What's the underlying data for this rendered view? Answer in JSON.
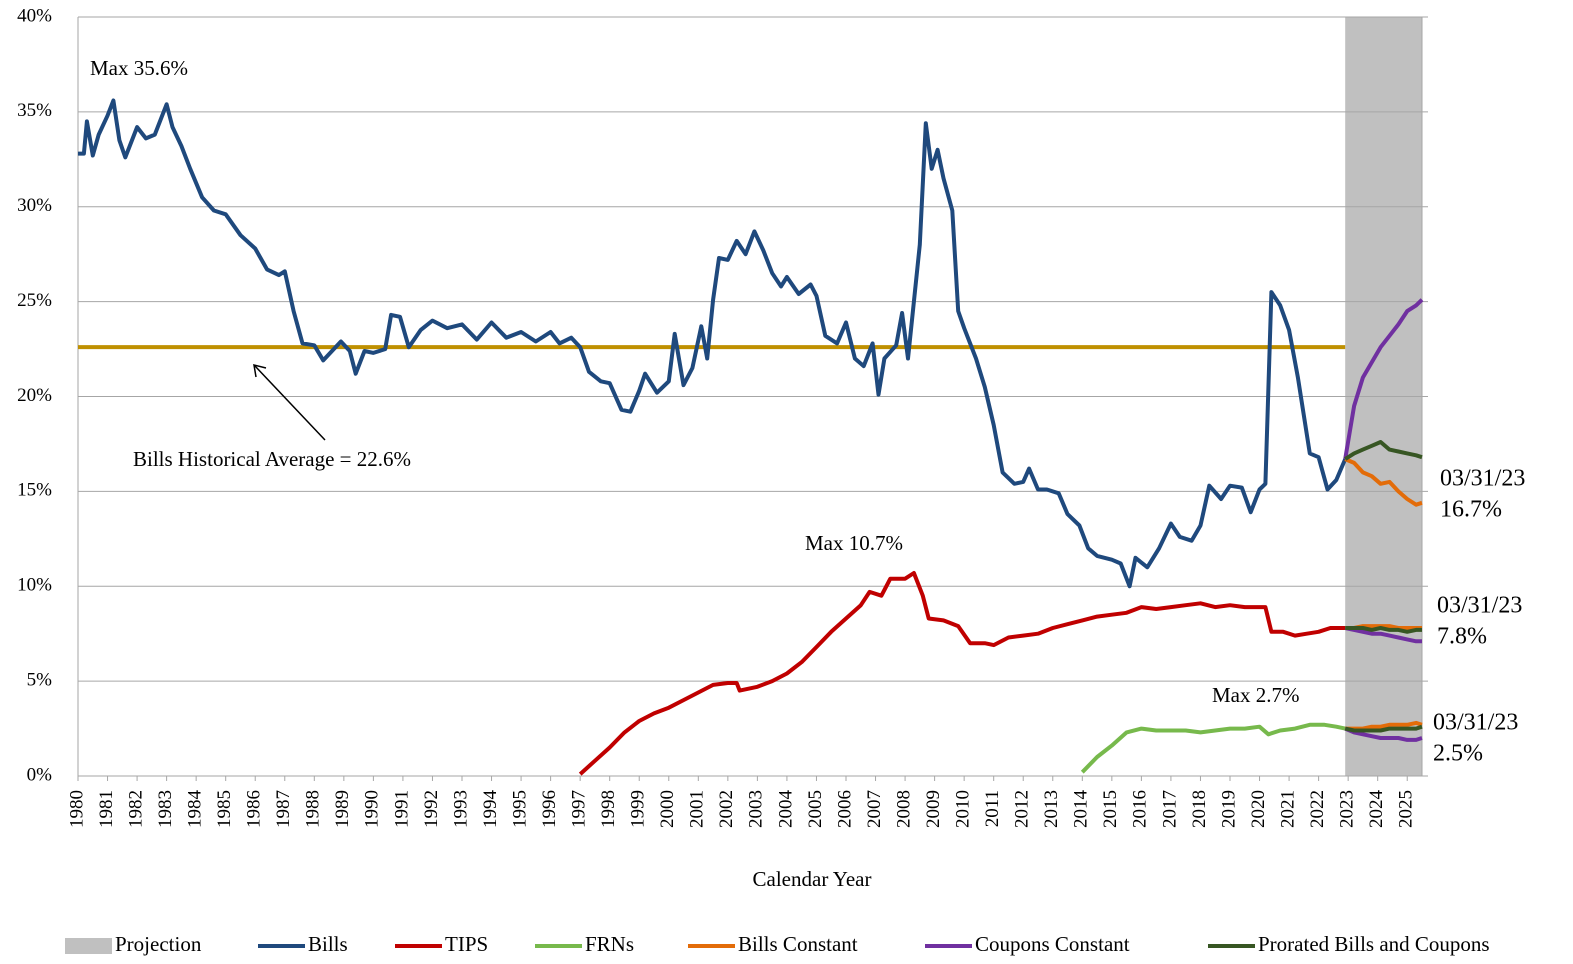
{
  "chart_data": {
    "type": "line",
    "x_label": "Calendar Year",
    "xlim": [
      1980,
      2025.5
    ],
    "xticks": [
      1980,
      1981,
      1982,
      1983,
      1984,
      1985,
      1986,
      1987,
      1988,
      1989,
      1990,
      1991,
      1992,
      1993,
      1994,
      1995,
      1996,
      1997,
      1998,
      1999,
      2000,
      2001,
      2002,
      2003,
      2004,
      2005,
      2006,
      2007,
      2008,
      2009,
      2010,
      2011,
      2012,
      2013,
      2014,
      2015,
      2016,
      2017,
      2018,
      2019,
      2020,
      2021,
      2022,
      2023,
      2024,
      2025
    ],
    "ylim": [
      0,
      40
    ],
    "yticks": [
      {
        "value": 0,
        "label": "0%"
      },
      {
        "value": 5,
        "label": "5%"
      },
      {
        "value": 10,
        "label": "10%"
      },
      {
        "value": 15,
        "label": "15%"
      },
      {
        "value": 20,
        "label": "20%"
      },
      {
        "value": 25,
        "label": "25%"
      },
      {
        "value": 30,
        "label": "30%"
      },
      {
        "value": 35,
        "label": "35%"
      },
      {
        "value": 40,
        "label": "40%"
      }
    ],
    "grid": true,
    "legend": "bottom",
    "projection": {
      "name": "Projection",
      "color": "#c0c0c0",
      "range": [
        2022.9,
        2025.5
      ]
    },
    "average": {
      "value": 22.6,
      "label": "Bills Historical Average = 22.6%",
      "color": "#bf9000"
    },
    "annotations": [
      "Max 35.6%",
      "Max 10.7%",
      "Max 2.7%"
    ],
    "end_labels": [
      {
        "date": "03/31/23",
        "label": "16.7%"
      },
      {
        "date": "03/31/23",
        "label": "7.8%"
      },
      {
        "date": "03/31/23",
        "label": "2.5%"
      }
    ],
    "series": [
      {
        "name": "Bills",
        "color": "#1f497d",
        "x": [
          1980.0,
          1980.2,
          1980.3,
          1980.5,
          1980.7,
          1981.0,
          1981.2,
          1981.4,
          1981.6,
          1982.0,
          1982.3,
          1982.6,
          1983.0,
          1983.2,
          1983.5,
          1983.8,
          1984.2,
          1984.6,
          1985.0,
          1985.5,
          1986.0,
          1986.4,
          1986.8,
          1987.0,
          1987.3,
          1987.6,
          1988.0,
          1988.3,
          1988.6,
          1988.9,
          1989.2,
          1989.4,
          1989.7,
          1990.0,
          1990.4,
          1990.6,
          1990.9,
          1991.2,
          1991.6,
          1992.0,
          1992.5,
          1993.0,
          1993.5,
          1994.0,
          1994.5,
          1995.0,
          1995.5,
          1996.0,
          1996.3,
          1996.7,
          1997.0,
          1997.3,
          1997.7,
          1998.0,
          1998.4,
          1998.7,
          1999.0,
          1999.2,
          1999.6,
          2000.0,
          2000.2,
          2000.5,
          2000.8,
          2001.1,
          2001.3,
          2001.5,
          2001.7,
          2002.0,
          2002.3,
          2002.6,
          2002.9,
          2003.2,
          2003.5,
          2003.8,
          2004.0,
          2004.4,
          2004.8,
          2005.0,
          2005.3,
          2005.7,
          2006.0,
          2006.3,
          2006.6,
          2006.9,
          2007.1,
          2007.3,
          2007.7,
          2007.9,
          2008.1,
          2008.5,
          2008.7,
          2008.9,
          2009.1,
          2009.3,
          2009.6,
          2009.8,
          2010.0,
          2010.4,
          2010.7,
          2011.0,
          2011.3,
          2011.7,
          2012.0,
          2012.2,
          2012.5,
          2012.8,
          2013.2,
          2013.5,
          2013.9,
          2014.2,
          2014.5,
          2015.0,
          2015.3,
          2015.6,
          2015.8,
          2016.2,
          2016.6,
          2017.0,
          2017.3,
          2017.7,
          2018.0,
          2018.3,
          2018.7,
          2019.0,
          2019.4,
          2019.7,
          2020.0,
          2020.2,
          2020.4,
          2020.7,
          2021.0,
          2021.3,
          2021.7,
          2022.0,
          2022.3,
          2022.6,
          2022.9
        ],
        "values": [
          32.8,
          32.8,
          34.5,
          32.7,
          33.8,
          34.8,
          35.6,
          33.5,
          32.6,
          34.2,
          33.6,
          33.8,
          35.4,
          34.2,
          33.2,
          32.0,
          30.5,
          29.8,
          29.6,
          28.5,
          27.8,
          26.7,
          26.4,
          26.6,
          24.5,
          22.8,
          22.7,
          21.9,
          22.4,
          22.9,
          22.4,
          21.2,
          22.4,
          22.3,
          22.5,
          24.3,
          24.2,
          22.6,
          23.5,
          24.0,
          23.6,
          23.8,
          23.0,
          23.9,
          23.1,
          23.4,
          22.9,
          23.4,
          22.8,
          23.1,
          22.6,
          21.3,
          20.8,
          20.7,
          19.3,
          19.2,
          20.3,
          21.2,
          20.2,
          20.8,
          23.3,
          20.6,
          21.5,
          23.7,
          22.0,
          25.1,
          27.3,
          27.2,
          28.2,
          27.5,
          28.7,
          27.7,
          26.5,
          25.8,
          26.3,
          25.4,
          25.9,
          25.3,
          23.2,
          22.8,
          23.9,
          22.0,
          21.6,
          22.8,
          20.1,
          22.0,
          22.7,
          24.4,
          22.0,
          28.0,
          34.4,
          32.0,
          33.0,
          31.5,
          29.8,
          24.5,
          23.6,
          22.0,
          20.5,
          18.5,
          16.0,
          15.4,
          15.5,
          16.2,
          15.1,
          15.1,
          14.9,
          13.8,
          13.2,
          12.0,
          11.6,
          11.4,
          11.2,
          10.0,
          11.5,
          11.0,
          12.0,
          13.3,
          12.6,
          12.4,
          13.2,
          15.3,
          14.6,
          15.3,
          15.2,
          13.9,
          15.1,
          15.4,
          25.5,
          24.8,
          23.5,
          21.0,
          17.0,
          16.8,
          15.1,
          15.6,
          16.7
        ]
      },
      {
        "name": "TIPS",
        "color": "#c00000",
        "x": [
          1997.0,
          1997.5,
          1998.0,
          1998.5,
          1999.0,
          1999.5,
          2000.0,
          2000.5,
          2001.0,
          2001.5,
          2002.0,
          2002.3,
          2002.4,
          2003.0,
          2003.5,
          2004.0,
          2004.5,
          2005.0,
          2005.5,
          2006.0,
          2006.5,
          2006.8,
          2007.2,
          2007.5,
          2008.0,
          2008.3,
          2008.6,
          2008.8,
          2009.3,
          2009.8,
          2010.2,
          2010.7,
          2011.0,
          2011.5,
          2012.0,
          2012.5,
          2013.0,
          2013.5,
          2014.0,
          2014.5,
          2015.0,
          2015.5,
          2016.0,
          2016.5,
          2017.0,
          2017.5,
          2018.0,
          2018.5,
          2019.0,
          2019.5,
          2020.0,
          2020.2,
          2020.4,
          2020.8,
          2021.2,
          2021.6,
          2022.0,
          2022.4,
          2022.9
        ],
        "values": [
          0.1,
          0.8,
          1.5,
          2.3,
          2.9,
          3.3,
          3.6,
          4.0,
          4.4,
          4.8,
          4.9,
          4.9,
          4.5,
          4.7,
          5.0,
          5.4,
          6.0,
          6.8,
          7.6,
          8.3,
          9.0,
          9.7,
          9.5,
          10.4,
          10.4,
          10.7,
          9.5,
          8.3,
          8.2,
          7.9,
          7.0,
          7.0,
          6.9,
          7.3,
          7.4,
          7.5,
          7.8,
          8.0,
          8.2,
          8.4,
          8.5,
          8.6,
          8.9,
          8.8,
          8.9,
          9.0,
          9.1,
          8.9,
          9.0,
          8.9,
          8.9,
          8.9,
          7.6,
          7.6,
          7.4,
          7.5,
          7.6,
          7.8,
          7.8
        ]
      },
      {
        "name": "FRNs",
        "color": "#77b94c",
        "x": [
          2014.0,
          2014.5,
          2015.0,
          2015.5,
          2016.0,
          2016.5,
          2017.0,
          2017.5,
          2018.0,
          2018.5,
          2019.0,
          2019.5,
          2020.0,
          2020.3,
          2020.7,
          2021.2,
          2021.7,
          2022.2,
          2022.6,
          2022.9
        ],
        "values": [
          0.2,
          1.0,
          1.6,
          2.3,
          2.5,
          2.4,
          2.4,
          2.4,
          2.3,
          2.4,
          2.5,
          2.5,
          2.6,
          2.2,
          2.4,
          2.5,
          2.7,
          2.7,
          2.6,
          2.5
        ]
      },
      {
        "name": "Bills Constant",
        "color": "#e36c09",
        "segments": [
          {
            "x": [
              2022.9,
              2023.2,
              2023.5,
              2023.8,
              2024.1,
              2024.4,
              2024.7,
              2025.0,
              2025.3,
              2025.5
            ],
            "values": [
              16.7,
              16.5,
              16.0,
              15.8,
              15.4,
              15.5,
              15.0,
              14.6,
              14.3,
              14.4
            ]
          },
          {
            "x": [
              2022.9,
              2023.2,
              2023.5,
              2023.8,
              2024.1,
              2024.4,
              2024.7,
              2025.0,
              2025.3,
              2025.5
            ],
            "values": [
              7.8,
              7.8,
              7.9,
              7.9,
              7.9,
              7.9,
              7.8,
              7.8,
              7.8,
              7.8
            ]
          },
          {
            "x": [
              2022.9,
              2023.2,
              2023.5,
              2023.8,
              2024.1,
              2024.4,
              2024.7,
              2025.0,
              2025.3,
              2025.5
            ],
            "values": [
              2.5,
              2.5,
              2.5,
              2.6,
              2.6,
              2.7,
              2.7,
              2.7,
              2.8,
              2.7
            ]
          }
        ]
      },
      {
        "name": "Coupons Constant",
        "color": "#7030a0",
        "segments": [
          {
            "x": [
              2022.9,
              2023.2,
              2023.5,
              2023.8,
              2024.1,
              2024.4,
              2024.7,
              2025.0,
              2025.3,
              2025.5
            ],
            "values": [
              16.7,
              19.5,
              21.0,
              21.8,
              22.6,
              23.2,
              23.8,
              24.5,
              24.8,
              25.1
            ]
          },
          {
            "x": [
              2022.9,
              2023.2,
              2023.5,
              2023.8,
              2024.1,
              2024.4,
              2024.7,
              2025.0,
              2025.3,
              2025.5
            ],
            "values": [
              7.8,
              7.7,
              7.6,
              7.5,
              7.5,
              7.4,
              7.3,
              7.2,
              7.1,
              7.1
            ]
          },
          {
            "x": [
              2022.9,
              2023.2,
              2023.5,
              2023.8,
              2024.1,
              2024.4,
              2024.7,
              2025.0,
              2025.3,
              2025.5
            ],
            "values": [
              2.5,
              2.3,
              2.2,
              2.1,
              2.0,
              2.0,
              2.0,
              1.9,
              1.9,
              2.0
            ]
          }
        ]
      },
      {
        "name": "Prorated Bills and Coupons",
        "color": "#375623",
        "segments": [
          {
            "x": [
              2022.9,
              2023.2,
              2023.5,
              2023.8,
              2024.1,
              2024.4,
              2024.7,
              2025.0,
              2025.3,
              2025.5
            ],
            "values": [
              16.7,
              17.0,
              17.2,
              17.4,
              17.6,
              17.2,
              17.1,
              17.0,
              16.9,
              16.8
            ]
          },
          {
            "x": [
              2022.9,
              2023.2,
              2023.5,
              2023.8,
              2024.1,
              2024.4,
              2024.7,
              2025.0,
              2025.3,
              2025.5
            ],
            "values": [
              7.8,
              7.8,
              7.8,
              7.7,
              7.8,
              7.7,
              7.7,
              7.6,
              7.7,
              7.7
            ]
          },
          {
            "x": [
              2022.9,
              2023.2,
              2023.5,
              2023.8,
              2024.1,
              2024.4,
              2024.7,
              2025.0,
              2025.3,
              2025.5
            ],
            "values": [
              2.5,
              2.4,
              2.4,
              2.4,
              2.4,
              2.5,
              2.5,
              2.5,
              2.5,
              2.6
            ]
          }
        ]
      }
    ]
  }
}
